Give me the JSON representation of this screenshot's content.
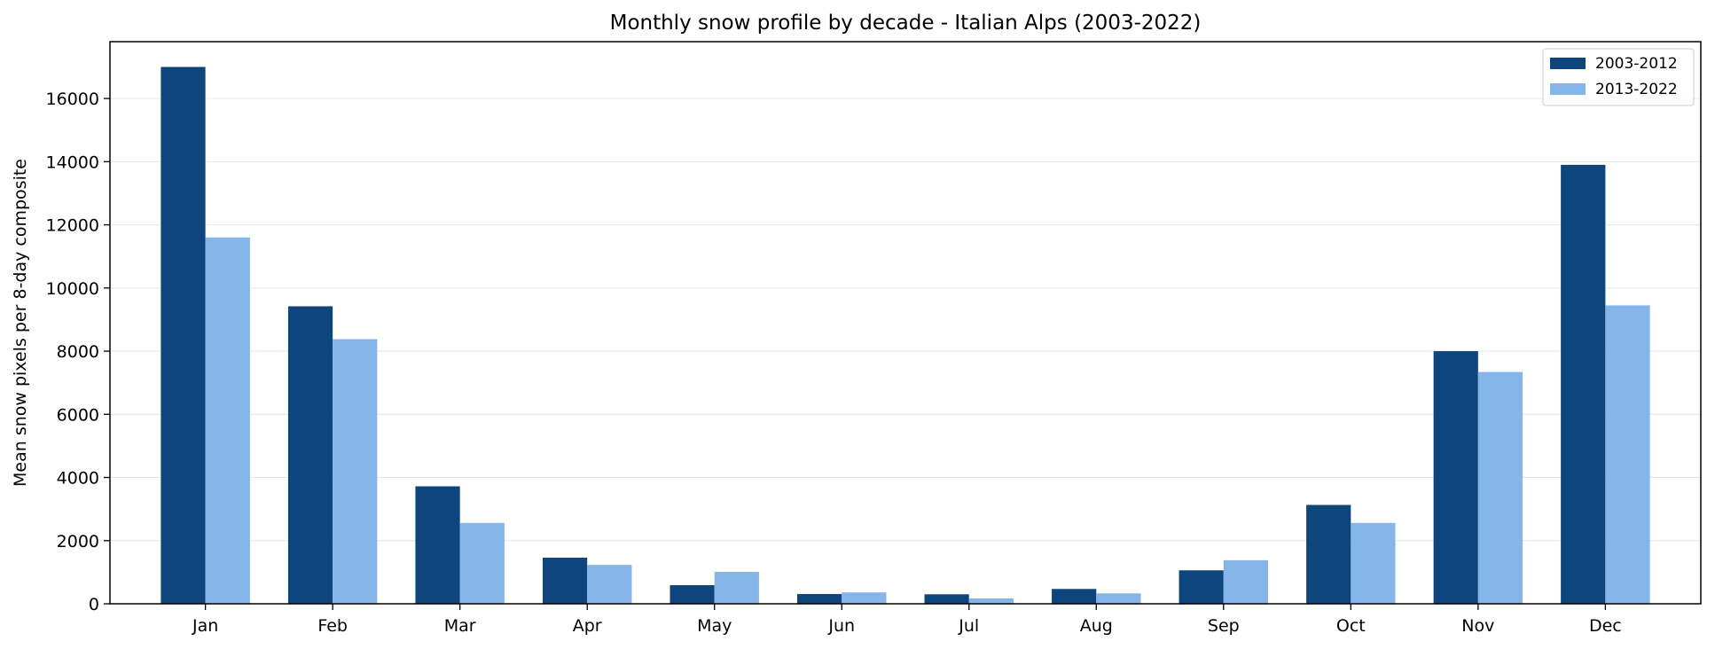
{
  "chart_data": {
    "type": "bar",
    "title": "Monthly snow profile by decade - Italian Alps (2003-2022)",
    "xlabel": "",
    "ylabel": "Mean snow pixels per 8-day composite",
    "categories": [
      "Jan",
      "Feb",
      "Mar",
      "Apr",
      "May",
      "Jun",
      "Jul",
      "Aug",
      "Sep",
      "Oct",
      "Nov",
      "Dec"
    ],
    "series": [
      {
        "name": "2003-2012",
        "color": "#0d457c",
        "values": [
          17000,
          9420,
          3720,
          1460,
          590,
          310,
          300,
          470,
          1060,
          3130,
          8000,
          13900
        ]
      },
      {
        "name": "2013-2022",
        "color": "#86b5ea",
        "values": [
          11600,
          8380,
          2560,
          1230,
          1010,
          360,
          170,
          330,
          1380,
          2560,
          7340,
          9450
        ]
      }
    ],
    "ylim": [
      0,
      17800
    ],
    "yticks": [
      0,
      2000,
      4000,
      6000,
      8000,
      10000,
      12000,
      14000,
      16000
    ],
    "grid": "y",
    "legend": "top-right"
  }
}
